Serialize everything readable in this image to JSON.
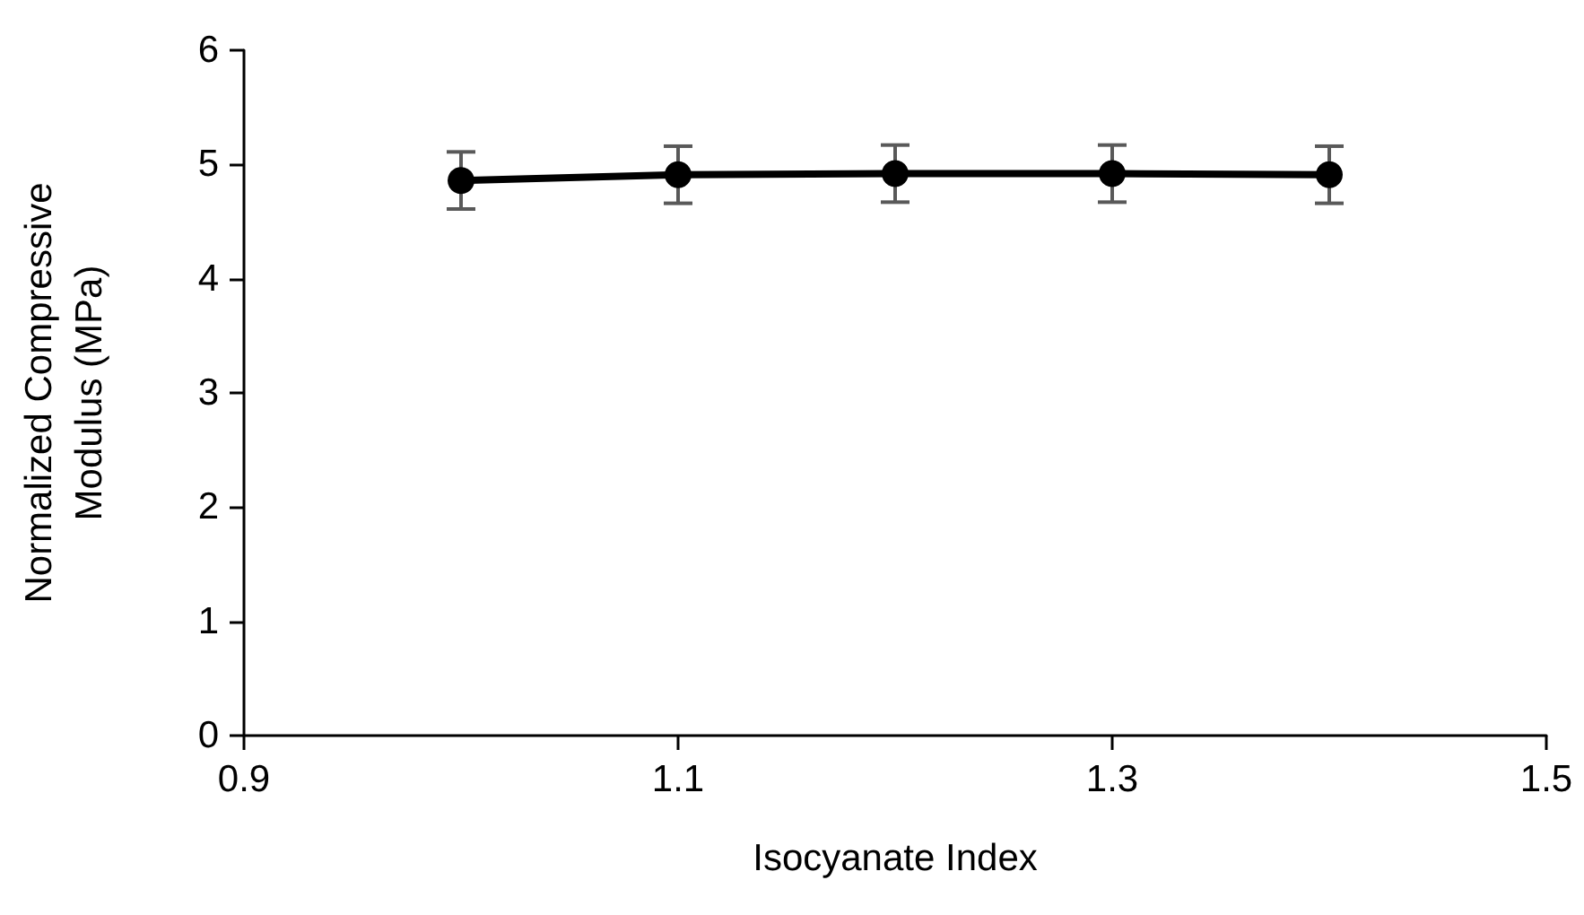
{
  "chart_data": {
    "type": "line",
    "xlabel": "Isocyanate Index",
    "ylabel": "Normalized Compressive\nModulus (MPa)",
    "x": [
      1.0,
      1.1,
      1.2,
      1.3,
      1.4
    ],
    "series": [
      {
        "color": "#000000",
        "values": [
          4.86,
          4.91,
          4.92,
          4.92,
          4.91
        ],
        "errors": [
          0.25,
          0.25,
          0.25,
          0.25,
          0.25
        ]
      }
    ],
    "xlim": [
      0.9,
      1.5
    ],
    "xticks": [
      0.9,
      1.1,
      1.3,
      1.5
    ],
    "ylim": [
      0,
      6
    ],
    "yticks": [
      0,
      1,
      2,
      3,
      4,
      5,
      6
    ],
    "grid": false,
    "marker": "circle",
    "line_style": "solid"
  }
}
